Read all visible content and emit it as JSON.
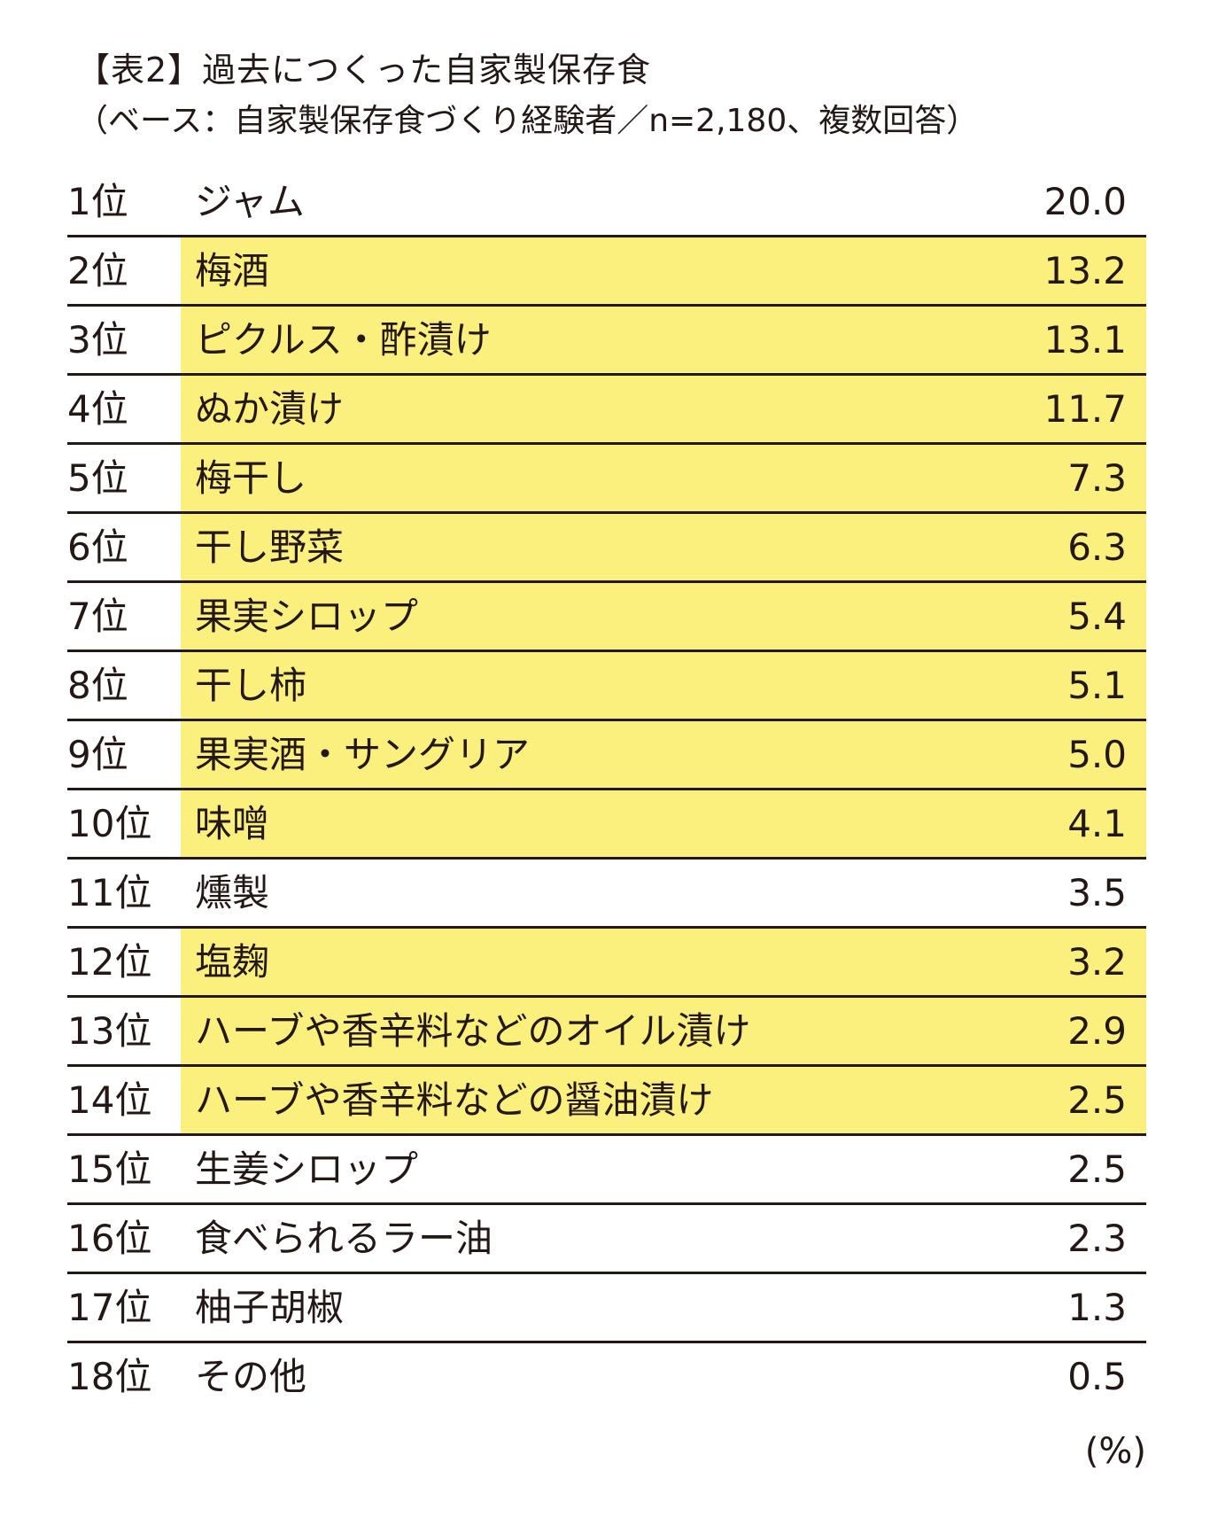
{
  "title": "【表2】過去につくった自家製保存食",
  "subtitle": "（ベース：自家製保存食づくり経験者／n=2,180、複数回答）",
  "colors": {
    "highlight": "#fbf07d",
    "text": "#231815",
    "rule": "#231815"
  },
  "rows": [
    {
      "rank": "1位",
      "item": "ジャム",
      "value": "20.0",
      "highlight": false
    },
    {
      "rank": "2位",
      "item": "梅酒",
      "value": "13.2",
      "highlight": true
    },
    {
      "rank": "3位",
      "item": "ピクルス・酢漬け",
      "value": "13.1",
      "highlight": true
    },
    {
      "rank": "4位",
      "item": "ぬか漬け",
      "value": "11.7",
      "highlight": true
    },
    {
      "rank": "5位",
      "item": "梅干し",
      "value": "7.3",
      "highlight": true
    },
    {
      "rank": "6位",
      "item": "干し野菜",
      "value": "6.3",
      "highlight": true
    },
    {
      "rank": "7位",
      "item": "果実シロップ",
      "value": "5.4",
      "highlight": true
    },
    {
      "rank": "8位",
      "item": "干し柿",
      "value": "5.1",
      "highlight": true
    },
    {
      "rank": "9位",
      "item": "果実酒・サングリア",
      "value": "5.0",
      "highlight": true
    },
    {
      "rank": "10位",
      "item": "味噌",
      "value": "4.1",
      "highlight": true
    },
    {
      "rank": "11位",
      "item": "燻製",
      "value": "3.5",
      "highlight": false
    },
    {
      "rank": "12位",
      "item": "塩麹",
      "value": "3.2",
      "highlight": true
    },
    {
      "rank": "13位",
      "item": "ハーブや香辛料などのオイル漬け",
      "value": "2.9",
      "highlight": true
    },
    {
      "rank": "14位",
      "item": "ハーブや香辛料などの醤油漬け",
      "value": "2.5",
      "highlight": true
    },
    {
      "rank": "15位",
      "item": "生姜シロップ",
      "value": "2.5",
      "highlight": false
    },
    {
      "rank": "16位",
      "item": "食べられるラー油",
      "value": "2.3",
      "highlight": false
    },
    {
      "rank": "17位",
      "item": "柚子胡椒",
      "value": "1.3",
      "highlight": false
    },
    {
      "rank": "18位",
      "item": "その他",
      "value": "0.5",
      "highlight": false
    }
  ],
  "unit": "(%)"
}
